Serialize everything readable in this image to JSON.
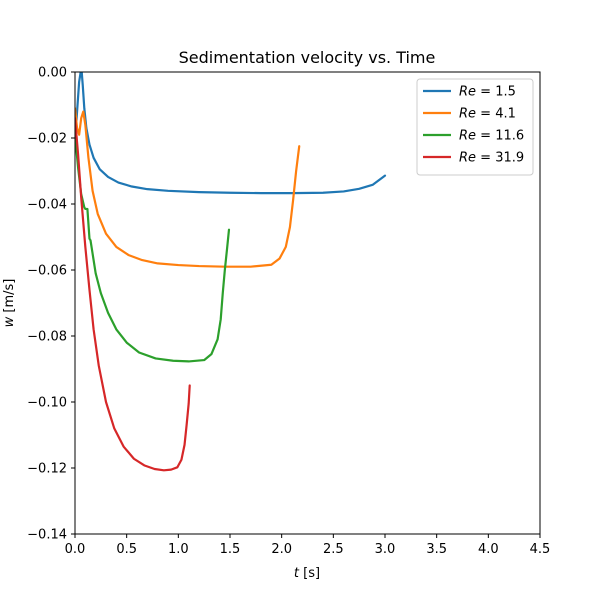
{
  "chart_data": {
    "type": "line",
    "title": "Sedimentation velocity vs. Time",
    "xlabel": {
      "var": "t",
      "unit": " [s]"
    },
    "ylabel": {
      "var": "w",
      "unit": " [m/s]"
    },
    "xlim": [
      0,
      4.5
    ],
    "ylim": [
      -0.14,
      0.0
    ],
    "xticks": [
      0.0,
      0.5,
      1.0,
      1.5,
      2.0,
      2.5,
      3.0,
      3.5,
      4.0,
      4.5
    ],
    "xtick_labels": [
      "0.0",
      "0.5",
      "1.0",
      "1.5",
      "2.0",
      "2.5",
      "3.0",
      "3.5",
      "4.0",
      "4.5"
    ],
    "yticks": [
      0.0,
      -0.02,
      -0.04,
      -0.06,
      -0.08,
      -0.1,
      -0.12,
      -0.14
    ],
    "ytick_labels": [
      "0.00",
      "−0.02",
      "−0.04",
      "−0.06",
      "−0.08",
      "−0.10",
      "−0.12",
      "−0.14"
    ],
    "grid": false,
    "legend_position": "top-right",
    "series": [
      {
        "name": "Re = 1.5",
        "legend_var": "Re",
        "legend_value": " = 1.5",
        "color": "#1f77b4",
        "x": [
          0.0,
          0.02,
          0.04,
          0.055,
          0.065,
          0.075,
          0.09,
          0.11,
          0.14,
          0.18,
          0.24,
          0.32,
          0.42,
          0.55,
          0.7,
          0.9,
          1.2,
          1.5,
          1.8,
          2.1,
          2.4,
          2.6,
          2.75,
          2.88,
          3.0
        ],
        "y": [
          -0.021,
          -0.012,
          -0.003,
          0.0,
          0.0,
          -0.004,
          -0.011,
          -0.017,
          -0.022,
          -0.026,
          -0.0295,
          -0.0318,
          -0.0335,
          -0.0347,
          -0.0355,
          -0.036,
          -0.0364,
          -0.0366,
          -0.0367,
          -0.0367,
          -0.0366,
          -0.0362,
          -0.0354,
          -0.0342,
          -0.0314
        ]
      },
      {
        "name": "Re = 4.1",
        "legend_var": "Re",
        "legend_value": " = 4.1",
        "color": "#ff7f0e",
        "x": [
          0.0,
          0.02,
          0.04,
          0.06,
          0.08,
          0.1,
          0.13,
          0.17,
          0.22,
          0.3,
          0.4,
          0.52,
          0.65,
          0.8,
          1.0,
          1.2,
          1.45,
          1.7,
          1.9,
          1.98,
          2.04,
          2.08,
          2.11,
          2.14,
          2.17
        ],
        "y": [
          -0.011,
          -0.017,
          -0.019,
          -0.014,
          -0.012,
          -0.016,
          -0.026,
          -0.036,
          -0.043,
          -0.049,
          -0.053,
          -0.0555,
          -0.057,
          -0.058,
          -0.0585,
          -0.0588,
          -0.059,
          -0.059,
          -0.0584,
          -0.0565,
          -0.053,
          -0.047,
          -0.039,
          -0.03,
          -0.0225
        ]
      },
      {
        "name": "Re = 11.6",
        "legend_var": "Re",
        "legend_value": " = 11.6",
        "color": "#2ca02c",
        "x": [
          0.0,
          0.03,
          0.06,
          0.09,
          0.1,
          0.12,
          0.14,
          0.15,
          0.17,
          0.2,
          0.25,
          0.32,
          0.4,
          0.5,
          0.62,
          0.78,
          0.95,
          1.1,
          1.25,
          1.32,
          1.38,
          1.41,
          1.43,
          1.45,
          1.47,
          1.49
        ],
        "y": [
          -0.019,
          -0.029,
          -0.037,
          -0.041,
          -0.0415,
          -0.0415,
          -0.0505,
          -0.051,
          -0.055,
          -0.061,
          -0.067,
          -0.073,
          -0.078,
          -0.082,
          -0.085,
          -0.0868,
          -0.0875,
          -0.0877,
          -0.0873,
          -0.0855,
          -0.081,
          -0.075,
          -0.067,
          -0.06,
          -0.054,
          -0.0478
        ]
      },
      {
        "name": "Re = 31.9",
        "legend_var": "Re",
        "legend_value": " = 31.9",
        "color": "#d62728",
        "x": [
          0.0,
          0.03,
          0.06,
          0.1,
          0.14,
          0.18,
          0.23,
          0.3,
          0.38,
          0.47,
          0.57,
          0.67,
          0.77,
          0.86,
          0.93,
          0.99,
          1.03,
          1.06,
          1.08,
          1.1,
          1.11
        ],
        "y": [
          -0.014,
          -0.025,
          -0.038,
          -0.053,
          -0.066,
          -0.078,
          -0.089,
          -0.1,
          -0.108,
          -0.1135,
          -0.1172,
          -0.1192,
          -0.1203,
          -0.1207,
          -0.1205,
          -0.1198,
          -0.1175,
          -0.113,
          -0.107,
          -0.1005,
          -0.095
        ]
      }
    ]
  }
}
